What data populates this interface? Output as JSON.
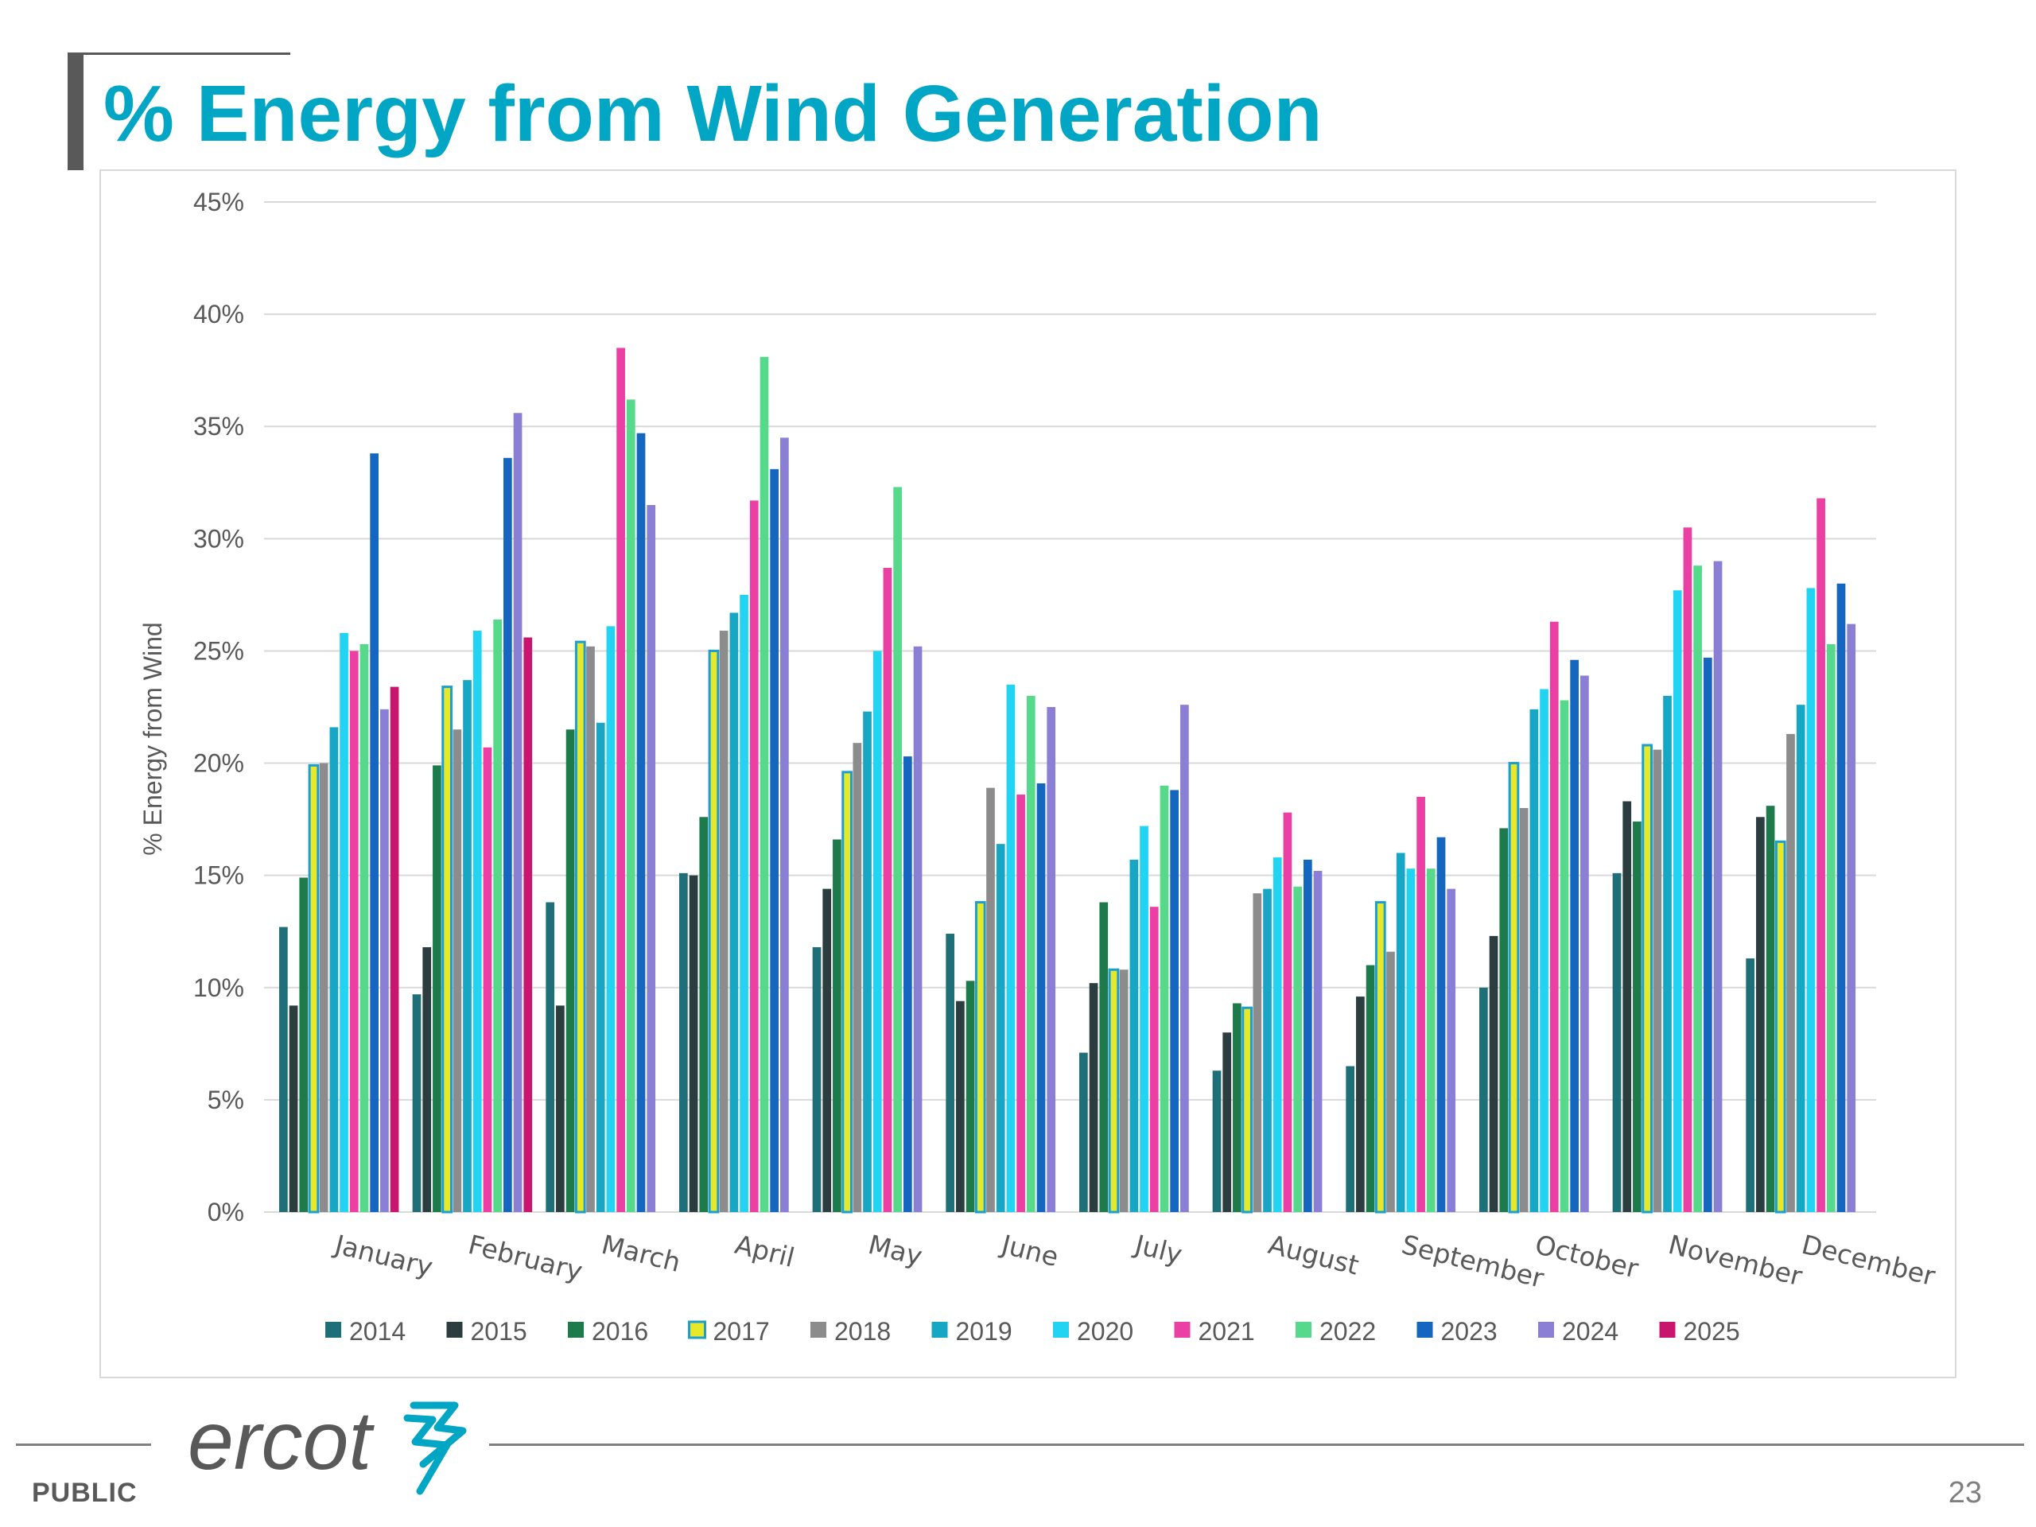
{
  "slide": {
    "title": "% Energy from Wind Generation",
    "footer_label": "PUBLIC",
    "page_number": "23",
    "logo_text": "ercot"
  },
  "colors": {
    "title": "#00a6c4",
    "gridline": "#d9d9d9",
    "axis_text": "#595959"
  },
  "chart_data": {
    "type": "bar",
    "title": "",
    "xlabel": "",
    "ylabel": "% Energy from Wind",
    "ylim": [
      0,
      45
    ],
    "yticks": [
      0,
      5,
      10,
      15,
      20,
      25,
      30,
      35,
      40,
      45
    ],
    "ytick_labels": [
      "0%",
      "5%",
      "10%",
      "15%",
      "20%",
      "25%",
      "30%",
      "35%",
      "40%",
      "45%"
    ],
    "grid": true,
    "legend_position": "bottom",
    "categories": [
      "January",
      "February",
      "March",
      "April",
      "May",
      "June",
      "July",
      "August",
      "September",
      "October",
      "November",
      "December"
    ],
    "series": [
      {
        "name": "2014",
        "color": "#1f6f78",
        "values": [
          12.7,
          9.7,
          13.8,
          15.1,
          11.8,
          12.4,
          7.1,
          6.3,
          6.5,
          10.0,
          15.1,
          11.3
        ]
      },
      {
        "name": "2015",
        "color": "#2b3d3f",
        "values": [
          9.2,
          11.8,
          9.2,
          15.0,
          14.4,
          9.4,
          10.2,
          8.0,
          9.6,
          12.3,
          18.3,
          17.6
        ]
      },
      {
        "name": "2016",
        "color": "#1d7a4a",
        "values": [
          14.9,
          19.9,
          21.5,
          17.6,
          16.6,
          10.3,
          13.8,
          9.3,
          11.0,
          17.1,
          17.4,
          18.1
        ]
      },
      {
        "name": "2017",
        "color": "#e8e82a",
        "stroke": "#1a9fd0",
        "values": [
          19.9,
          23.4,
          25.4,
          25.0,
          19.6,
          13.8,
          10.8,
          9.1,
          13.8,
          20.0,
          20.8,
          16.5
        ]
      },
      {
        "name": "2018",
        "color": "#8c8c8c",
        "values": [
          20.0,
          21.5,
          25.2,
          25.9,
          20.9,
          18.9,
          10.8,
          14.2,
          11.6,
          18.0,
          20.6,
          21.3
        ]
      },
      {
        "name": "2019",
        "color": "#17a7c4",
        "values": [
          21.6,
          23.7,
          21.8,
          26.7,
          22.3,
          16.4,
          15.7,
          14.4,
          16.0,
          22.4,
          23.0,
          22.6
        ]
      },
      {
        "name": "2020",
        "color": "#22d4f2",
        "values": [
          25.8,
          25.9,
          26.1,
          27.5,
          25.0,
          23.5,
          17.2,
          15.8,
          15.3,
          23.3,
          27.7,
          27.8
        ]
      },
      {
        "name": "2021",
        "color": "#ec3fa3",
        "values": [
          25.0,
          20.7,
          38.5,
          31.7,
          28.7,
          18.6,
          13.6,
          17.8,
          18.5,
          26.3,
          30.5,
          31.8
        ]
      },
      {
        "name": "2022",
        "color": "#57d98c",
        "values": [
          25.3,
          26.4,
          36.2,
          38.1,
          32.3,
          23.0,
          19.0,
          14.5,
          15.3,
          22.8,
          28.8,
          25.3
        ]
      },
      {
        "name": "2023",
        "color": "#1466bf",
        "values": [
          33.8,
          33.6,
          34.7,
          33.1,
          20.3,
          19.1,
          18.8,
          15.7,
          16.7,
          24.6,
          24.7,
          28.0
        ]
      },
      {
        "name": "2024",
        "color": "#8a7fd4",
        "values": [
          22.4,
          35.6,
          31.5,
          34.5,
          25.2,
          22.5,
          22.6,
          15.2,
          14.4,
          23.9,
          29.0,
          26.2
        ]
      },
      {
        "name": "2025",
        "color": "#c8166f",
        "values": [
          23.4,
          25.6,
          null,
          null,
          null,
          null,
          null,
          null,
          null,
          null,
          null,
          null
        ]
      }
    ]
  }
}
